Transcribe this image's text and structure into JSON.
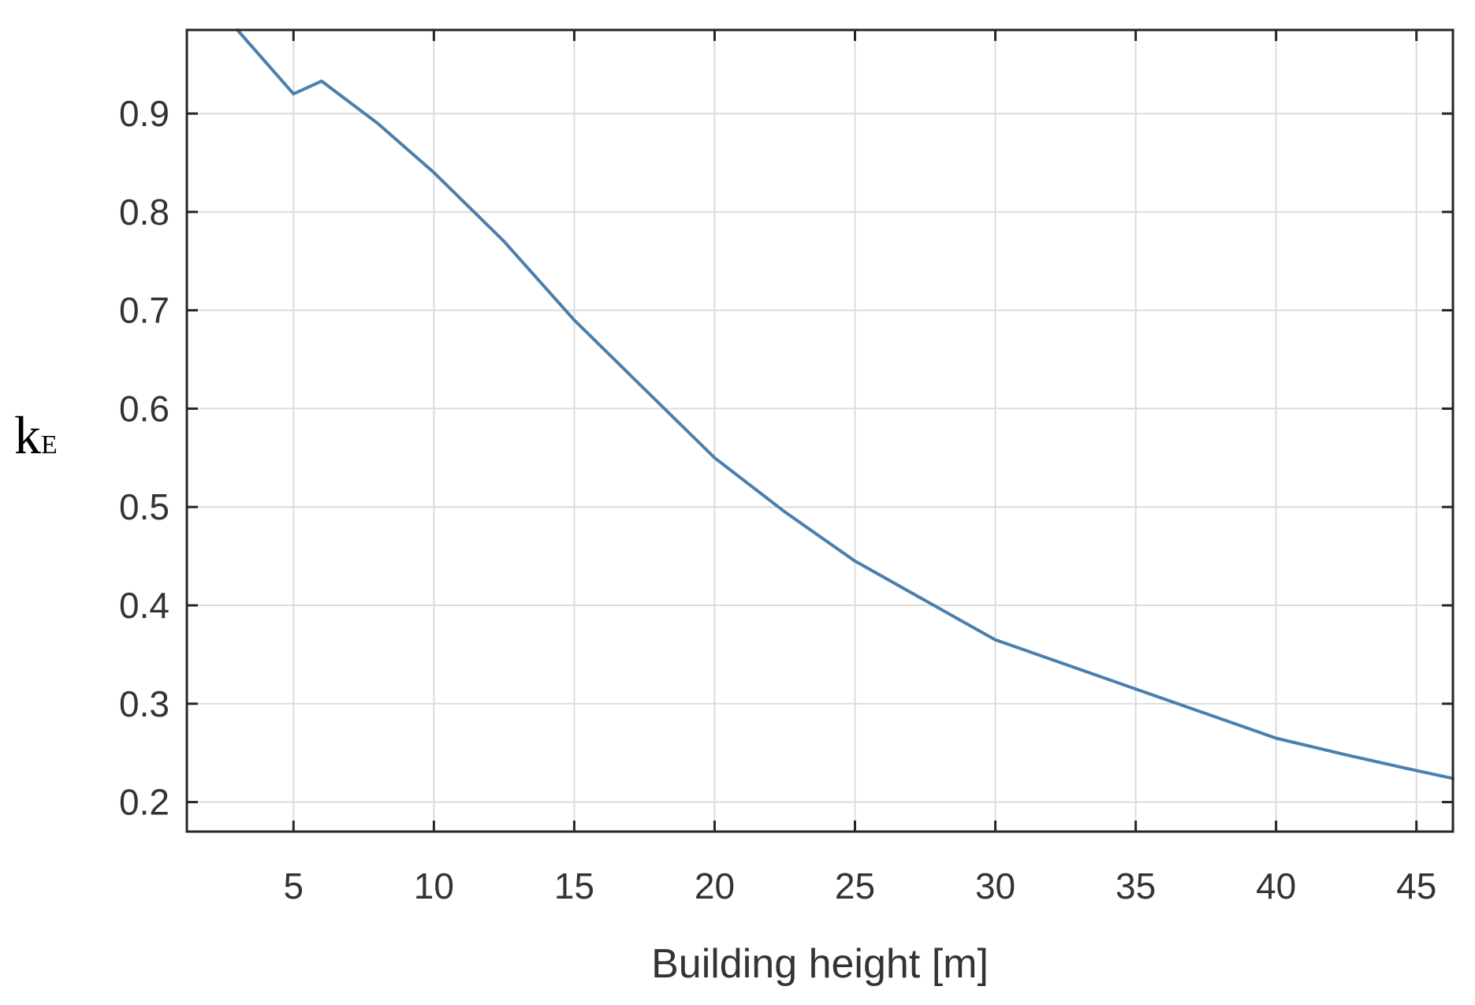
{
  "chart_data": {
    "type": "line",
    "title": "",
    "xlabel": "Building height [m]",
    "ylabel": "kE",
    "ylabel_main": "k",
    "ylabel_sub": "E",
    "xlim": [
      1.2,
      46.3
    ],
    "ylim": [
      0.17,
      0.985
    ],
    "xticks": [
      5,
      10,
      15,
      20,
      25,
      30,
      35,
      40,
      45
    ],
    "xtick_labels": [
      "5",
      "10",
      "15",
      "20",
      "25",
      "30",
      "35",
      "40",
      "45"
    ],
    "yticks": [
      0.2,
      0.3,
      0.4,
      0.5,
      0.6,
      0.7,
      0.8,
      0.9
    ],
    "ytick_labels": [
      "0.2",
      "0.3",
      "0.4",
      "0.5",
      "0.6",
      "0.7",
      "0.8",
      "0.9"
    ],
    "grid": true,
    "series": [
      {
        "color": "#4a7fae",
        "x": [
          3,
          5,
          6,
          8,
          10,
          12.5,
          15,
          17.5,
          20,
          22.5,
          25,
          27.5,
          30,
          32.5,
          35,
          37.5,
          40,
          42.5,
          45,
          46.3
        ],
        "y": [
          0.985,
          0.92,
          0.933,
          0.89,
          0.84,
          0.77,
          0.69,
          0.62,
          0.55,
          0.495,
          0.445,
          0.405,
          0.365,
          0.34,
          0.315,
          0.29,
          0.265,
          0.248,
          0.232,
          0.224
        ]
      }
    ]
  }
}
